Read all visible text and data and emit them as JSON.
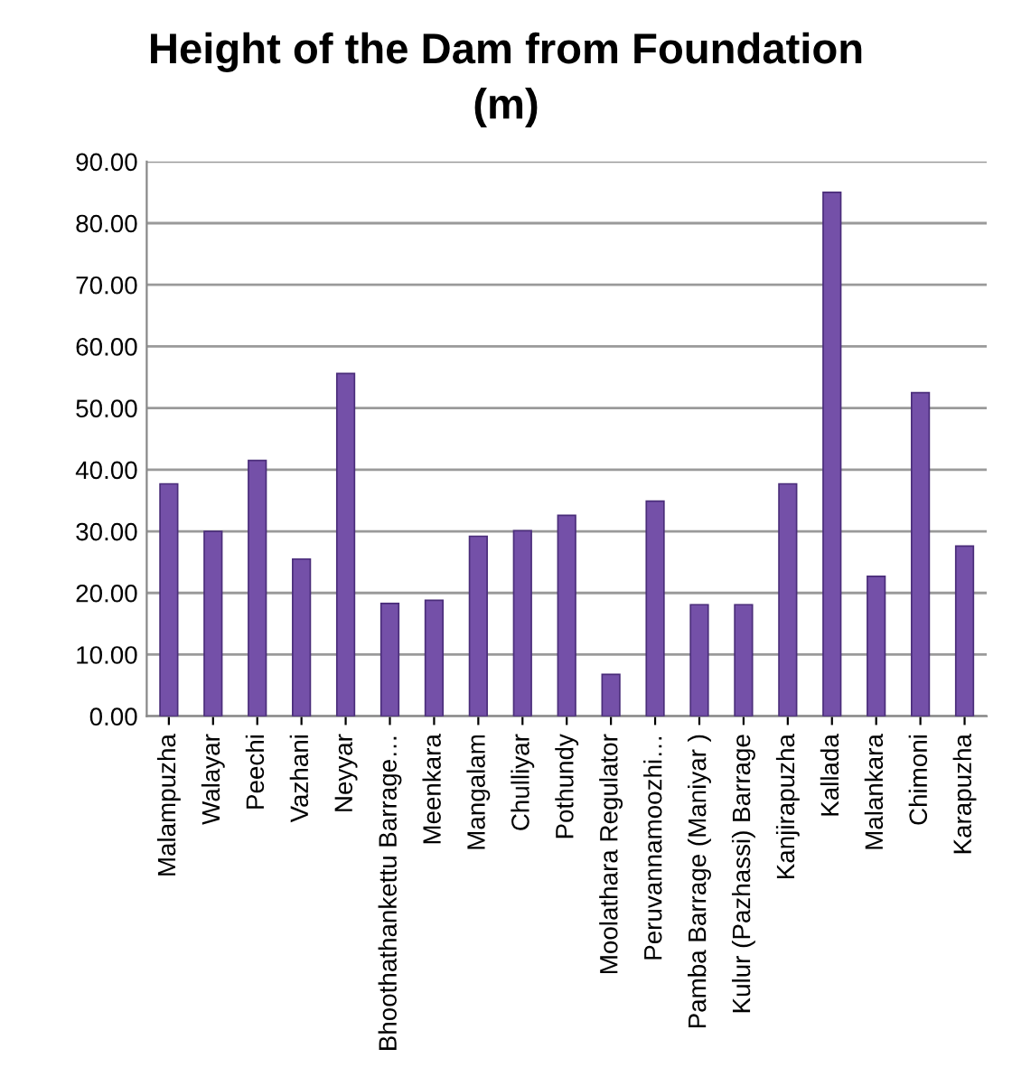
{
  "chart_data": {
    "type": "bar",
    "title": "Height of the Dam from Foundation\n(m)",
    "categories": [
      "Malampuzha",
      "Walayar",
      "Peechi",
      "Vazhani",
      "Neyyar",
      "Bhoothathankettu Barrage…",
      "Meenkara",
      "Mangalam",
      "Chulliyar",
      "Pothundy",
      "Moolathara Regulator",
      "Peruvannamoozhi…",
      "Pamba Barrage (Maniyar )",
      "Kulur (Pazhassi) Barrage",
      "Kanjirapuzha",
      "Kallada",
      "Malankara",
      "Chimoni",
      "Karapuzha"
    ],
    "values": [
      37.7,
      30.0,
      41.5,
      25.5,
      55.6,
      18.3,
      18.8,
      29.2,
      30.1,
      32.6,
      6.8,
      34.9,
      18.1,
      18.1,
      37.7,
      85.0,
      22.7,
      52.5,
      27.6
    ],
    "color": "#7450a8",
    "ylim": [
      0,
      90
    ],
    "yticks": [
      {
        "value": 0,
        "label": "0.00"
      },
      {
        "value": 10,
        "label": "10.00"
      },
      {
        "value": 20,
        "label": "20.00"
      },
      {
        "value": 30,
        "label": "30.00"
      },
      {
        "value": 40,
        "label": "40.00"
      },
      {
        "value": 50,
        "label": "50.00"
      },
      {
        "value": 60,
        "label": "60.00"
      },
      {
        "value": 70,
        "label": "70.00"
      },
      {
        "value": 80,
        "label": "80.00"
      },
      {
        "value": 90,
        "label": "90.00"
      }
    ],
    "grid": "y"
  }
}
